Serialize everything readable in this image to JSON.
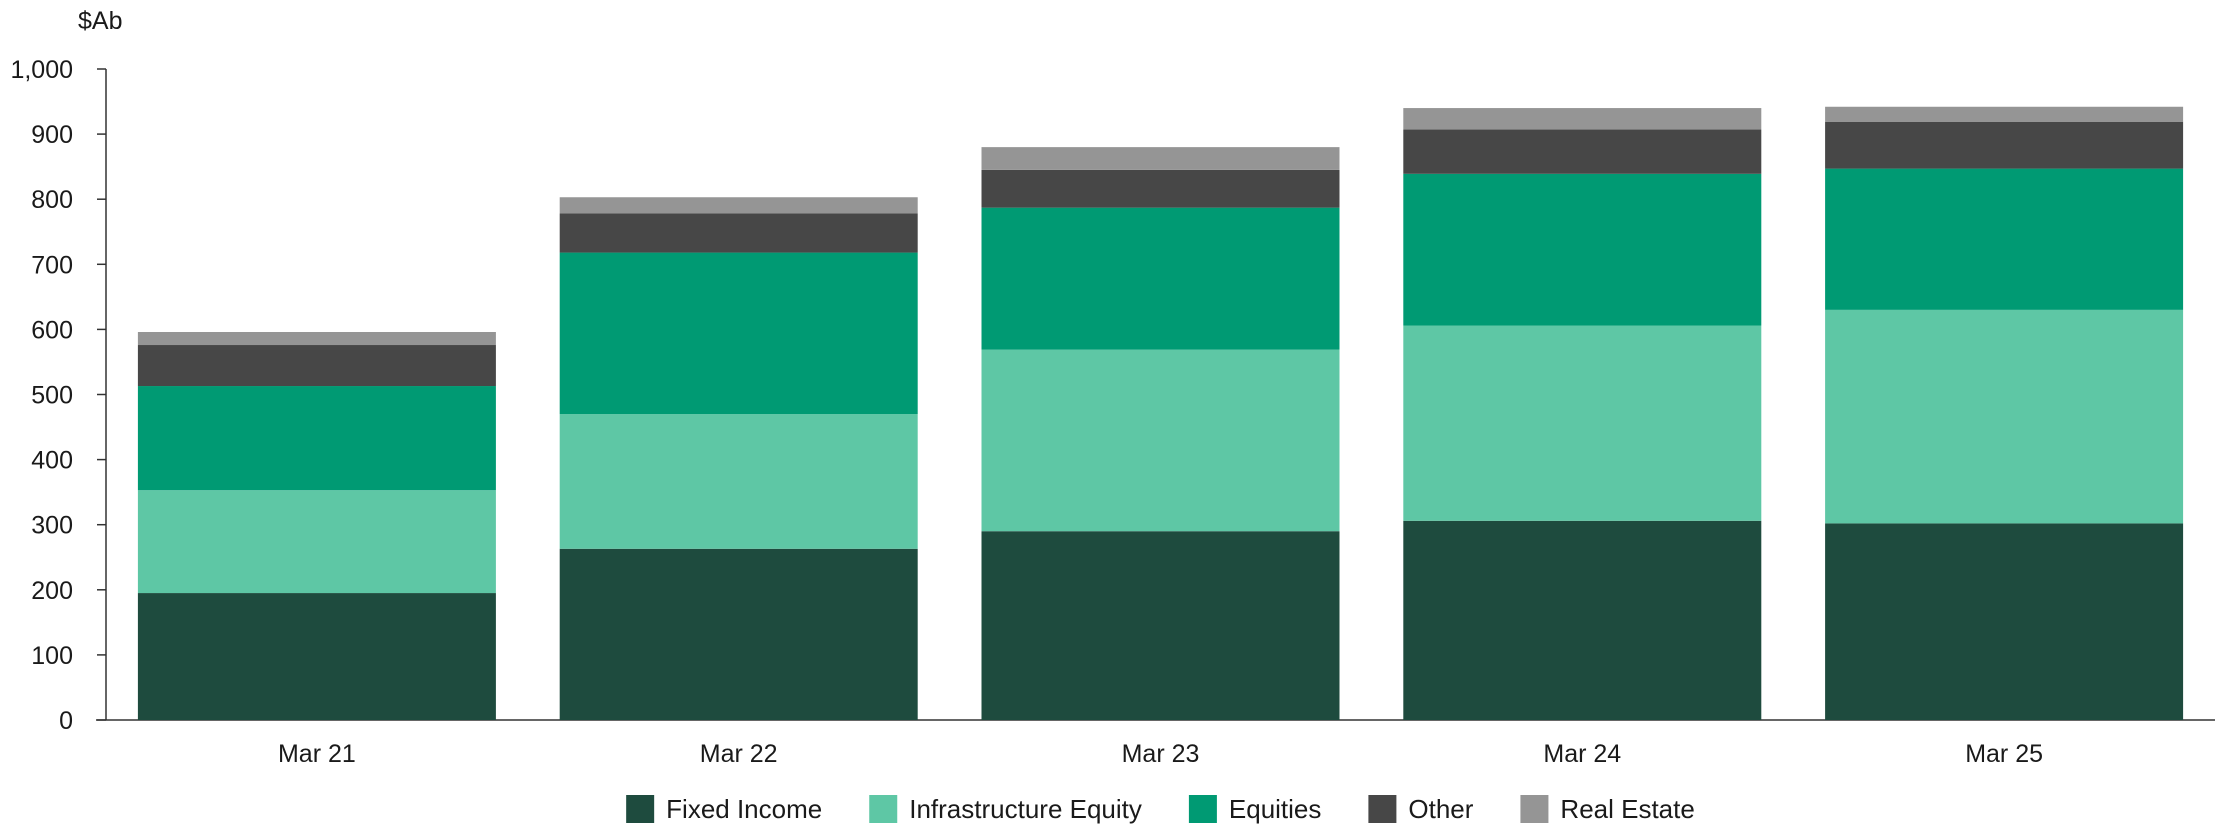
{
  "chart_data": {
    "type": "bar",
    "stacked": true,
    "ylabel": "$Ab",
    "ylim": [
      0,
      1000
    ],
    "yticks": [
      "0",
      "100",
      "200",
      "300",
      "400",
      "500",
      "600",
      "700",
      "800",
      "900",
      "1,000"
    ],
    "grid": false,
    "legend_position": "bottom-center",
    "categories": [
      "Mar 21",
      "Mar 22",
      "Mar 23",
      "Mar 24",
      "Mar 25"
    ],
    "series": [
      {
        "name": "Fixed Income",
        "color": "#1e4b3e",
        "values": [
          195,
          263,
          290,
          306,
          302
        ]
      },
      {
        "name": "Infrastructure Equity",
        "color": "#5ec7a5",
        "values": [
          158,
          207,
          279,
          300,
          328
        ]
      },
      {
        "name": "Equities",
        "color": "#009a73",
        "values": [
          160,
          248,
          218,
          233,
          217
        ]
      },
      {
        "name": "Other",
        "color": "#474747",
        "values": [
          63,
          60,
          58,
          68,
          72
        ]
      },
      {
        "name": "Real Estate",
        "color": "#959595",
        "values": [
          20,
          25,
          35,
          33,
          23
        ]
      }
    ]
  }
}
